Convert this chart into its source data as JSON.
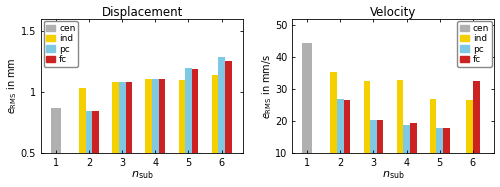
{
  "disp_title": "Displacement",
  "disp_ylabel": "$e_{\\mathrm{RMS}}$ in mm",
  "disp_xlabel": "$n_{\\mathrm{sub}}$",
  "disp_ylim": [
    0.5,
    1.6
  ],
  "disp_yticks": [
    0.5,
    1.0,
    1.5
  ],
  "disp_data": {
    "cen": [
      0.87,
      null,
      null,
      null,
      null,
      null
    ],
    "ind": [
      null,
      1.03,
      1.08,
      1.11,
      1.1,
      1.14
    ],
    "pc": [
      null,
      0.845,
      1.08,
      1.11,
      1.2,
      1.29
    ],
    "fc": [
      null,
      0.845,
      1.08,
      1.11,
      1.19,
      1.25
    ]
  },
  "vel_title": "Velocity",
  "vel_ylabel": "$e_{\\mathrm{RMS}}$ in mm/s",
  "vel_xlabel": "$n_{\\mathrm{sub}}$",
  "vel_ylim": [
    10,
    52
  ],
  "vel_yticks": [
    10,
    20,
    30,
    40,
    50
  ],
  "vel_data": {
    "cen": [
      44.5,
      null,
      null,
      null,
      null,
      null
    ],
    "ind": [
      null,
      35.5,
      32.5,
      33.0,
      27.0,
      26.5
    ],
    "pc": [
      null,
      27.0,
      20.5,
      19.0,
      18.0,
      null
    ],
    "fc": [
      null,
      26.5,
      20.5,
      19.5,
      18.0,
      32.5
    ]
  },
  "colors": {
    "cen": "#b0b0b0",
    "ind": "#f5d000",
    "pc": "#7ec8e3",
    "fc": "#cc2222"
  },
  "legend_labels": [
    "cen",
    "ind",
    "pc",
    "fc"
  ],
  "x_labels": [
    1,
    2,
    3,
    4,
    5,
    6
  ],
  "bar_width": 0.2
}
